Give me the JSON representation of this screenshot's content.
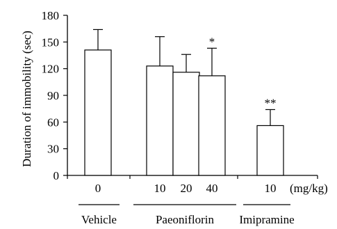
{
  "chart_data": {
    "type": "bar",
    "ylabel": "Duration of immobility (sec)",
    "ylim": [
      0,
      180
    ],
    "yticks": [
      "0",
      "30",
      "60",
      "90",
      "120",
      "150",
      "180"
    ],
    "categories": [
      "0",
      "10",
      "20",
      "40",
      "10"
    ],
    "unit_label": "(mg/kg)",
    "values": [
      141,
      123,
      116,
      112,
      56
    ],
    "errors": [
      23,
      33,
      20,
      31,
      18
    ],
    "annotations": [
      "",
      "",
      "",
      "*",
      "**"
    ],
    "groups": [
      {
        "label": "Vehicle",
        "members": [
          0
        ]
      },
      {
        "label": "Paeoniflorin",
        "members": [
          1,
          2,
          3
        ]
      },
      {
        "label": "Imipramine",
        "members": [
          4
        ]
      }
    ],
    "grid": false,
    "colors": {
      "bar_fill": "#ffffff",
      "stroke": "#000000"
    }
  }
}
